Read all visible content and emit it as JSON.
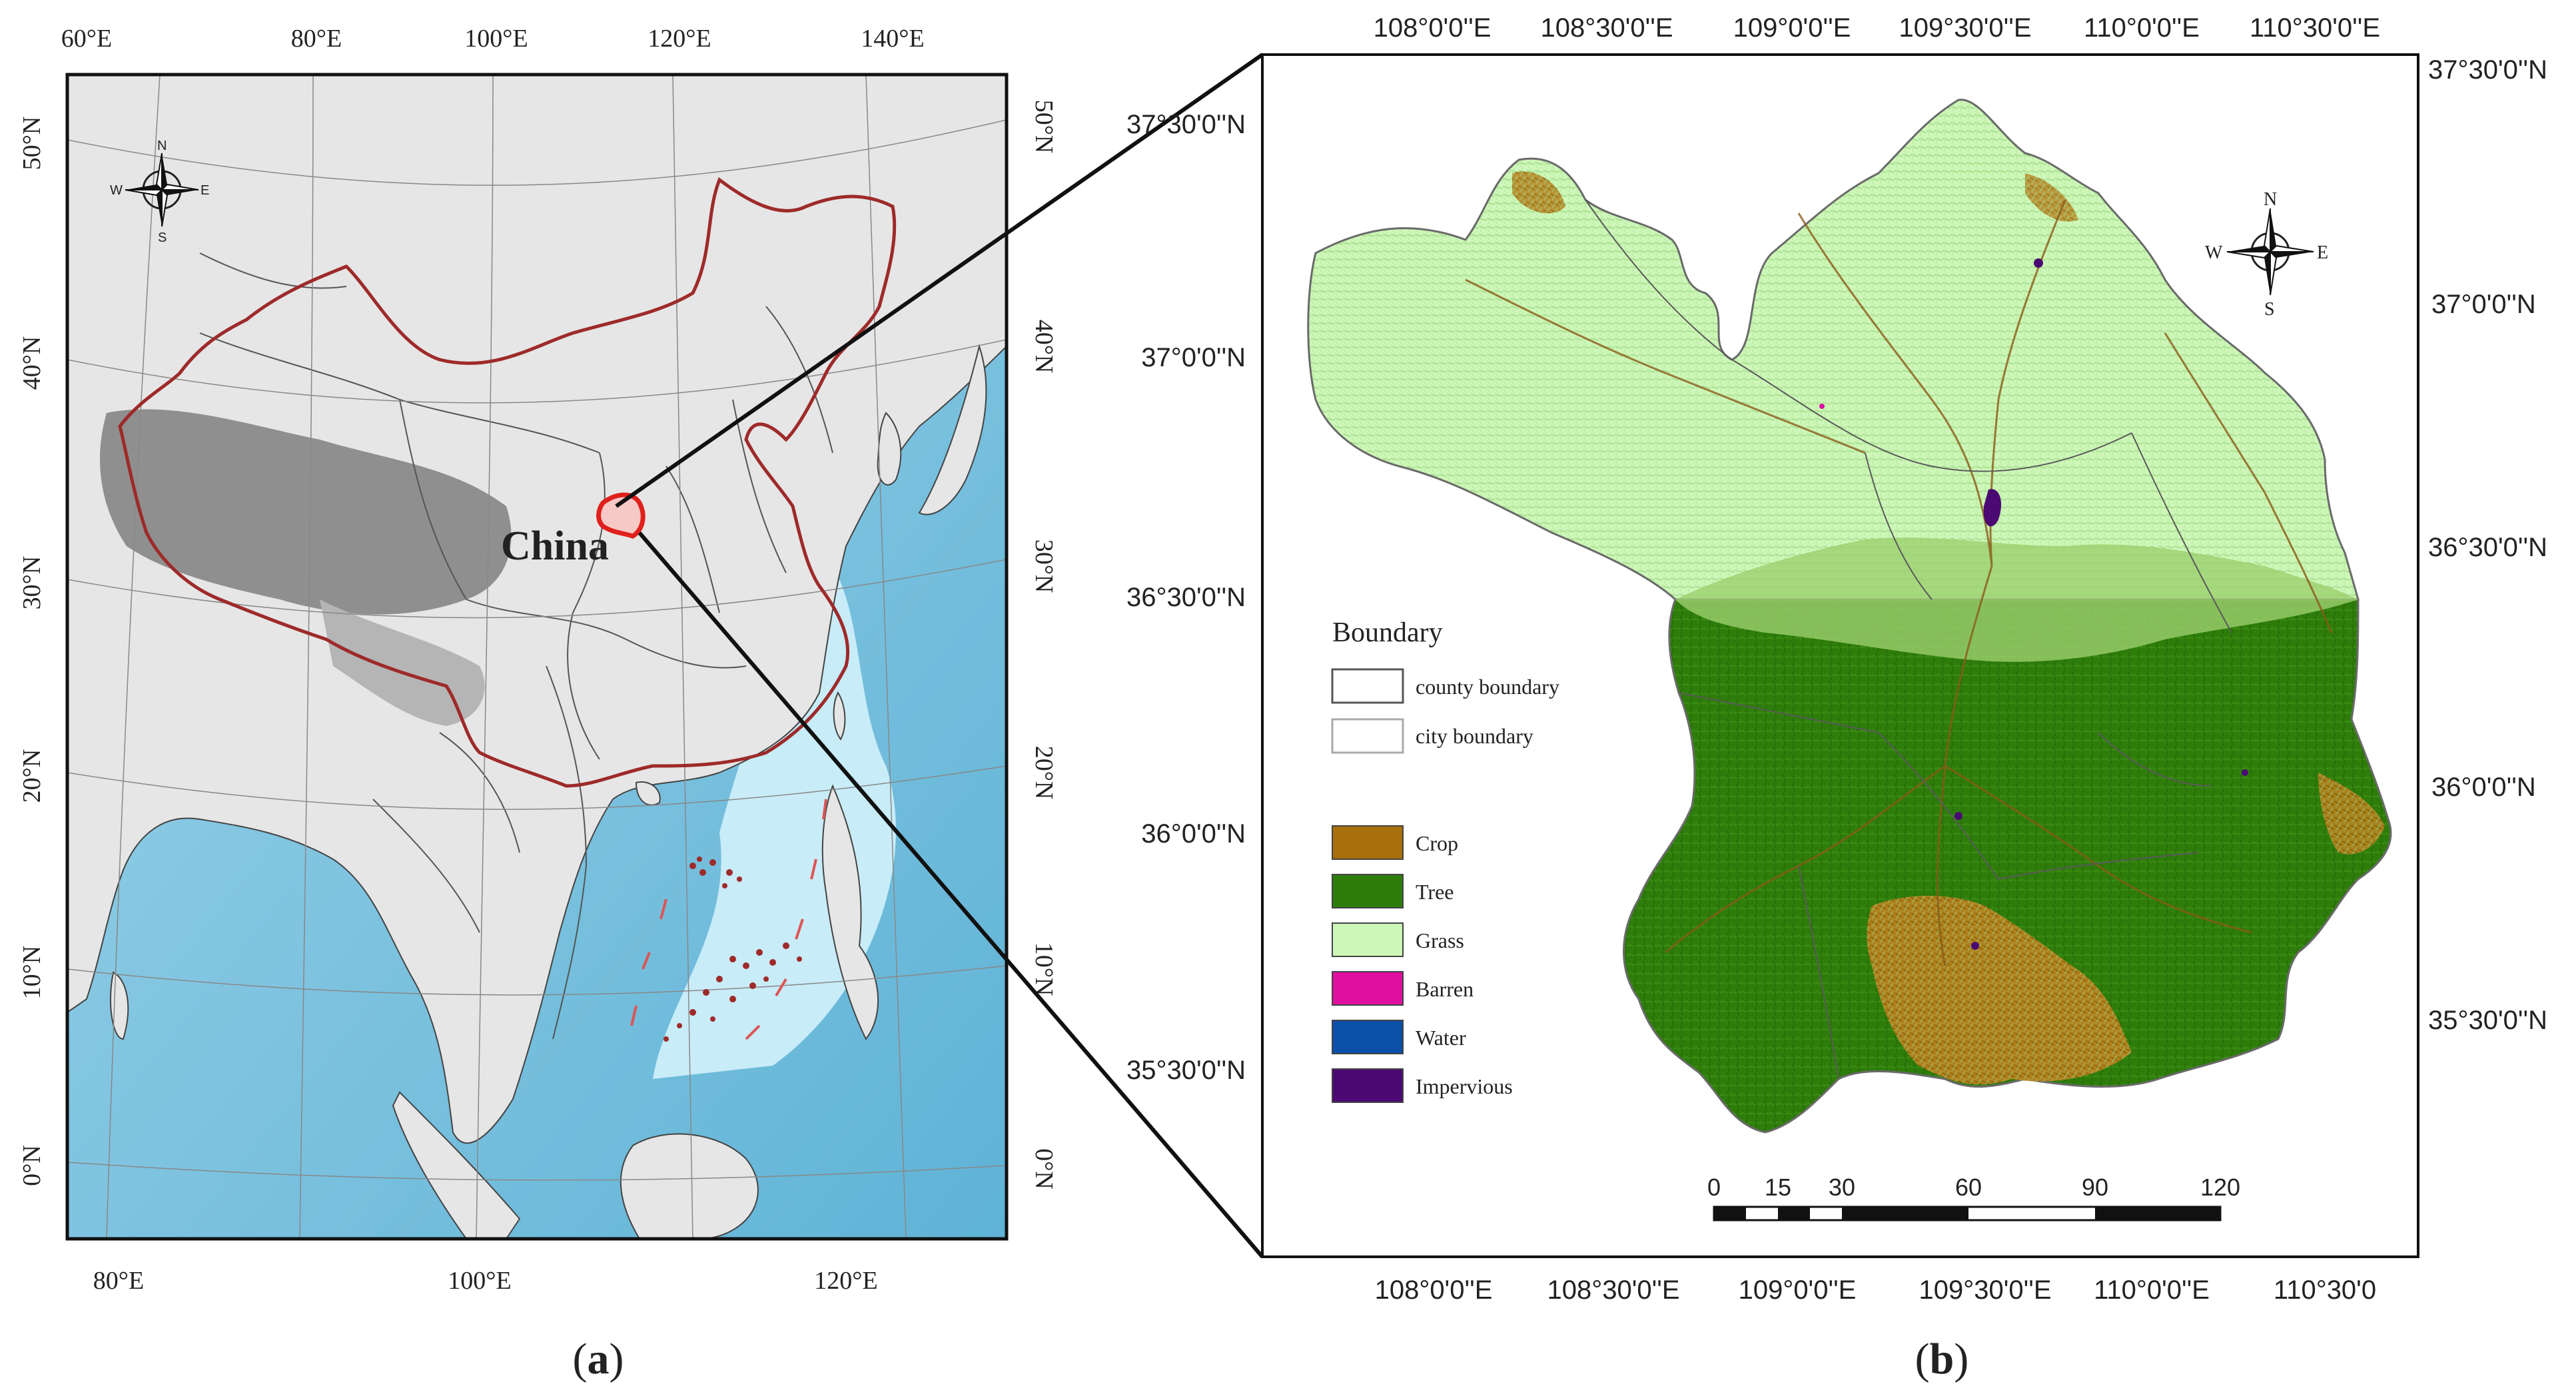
{
  "panel_a": {
    "label_prefix": "(",
    "label_letter": "a",
    "label_suffix": ")",
    "country_label": "China",
    "top_lon": [
      "60°E",
      "80°E",
      "100°E",
      "120°E",
      "140°E"
    ],
    "bottom_lon": [
      "80°E",
      "100°E",
      "120°E"
    ],
    "left_lat": [
      "50°N",
      "40°N",
      "30°N",
      "20°N",
      "10°N",
      "0°N"
    ],
    "right_lat": [
      "50°N",
      "40°N",
      "30°N",
      "20°N",
      "10°N",
      "0°N"
    ],
    "compass": {
      "n": "N",
      "s": "S",
      "e": "E",
      "w": "W"
    },
    "colors": {
      "ocean": "#7ec3de",
      "shallow": "#bfe6f5",
      "land": "#e8e8e8",
      "plateau": "#8a8a8a",
      "china_border": "#9e2a2a",
      "study_area": "#e0201c"
    }
  },
  "panel_b": {
    "label_prefix": "(",
    "label_letter": "b",
    "label_suffix": ")",
    "top_lon": [
      "108°0'0''E",
      "108°30'0''E",
      "109°0'0''E",
      "109°30'0''E",
      "110°0'0''E",
      "110°30'0''E"
    ],
    "bottom_lon": [
      "108°0'0''E",
      "108°30'0''E",
      "109°0'0''E",
      "109°30'0''E",
      "110°0'0''E",
      "110°30'0"
    ],
    "left_lat": [
      "37°30'0''N",
      "37°0'0''N",
      "36°30'0''N",
      "36°0'0''N",
      "35°30'0''N"
    ],
    "right_lat": [
      "37°30'0''N",
      "37°0'0''N",
      "36°30'0''N",
      "36°0'0''N",
      "35°30'0''N"
    ],
    "compass": {
      "n": "N",
      "s": "S",
      "e": "E",
      "w": "W"
    },
    "legend": {
      "boundary_title": "Boundary",
      "boundaries": [
        {
          "label": "county boundary",
          "color": "#555555"
        },
        {
          "label": "city boundary",
          "color": "#aaaaaa"
        }
      ],
      "classes": [
        {
          "label": "Crop",
          "color": "#a8700a"
        },
        {
          "label": "Tree",
          "color": "#2e7d0b"
        },
        {
          "label": "Grass",
          "color": "#cdf7b8"
        },
        {
          "label": "Barren",
          "color": "#e00fa0"
        },
        {
          "label": "Water",
          "color": "#0a4fa8"
        },
        {
          "label": "Impervious",
          "color": "#4b0a73"
        }
      ]
    },
    "scale_bar": {
      "ticks": [
        "0",
        "15",
        "30",
        "60",
        "90",
        "120"
      ]
    }
  }
}
